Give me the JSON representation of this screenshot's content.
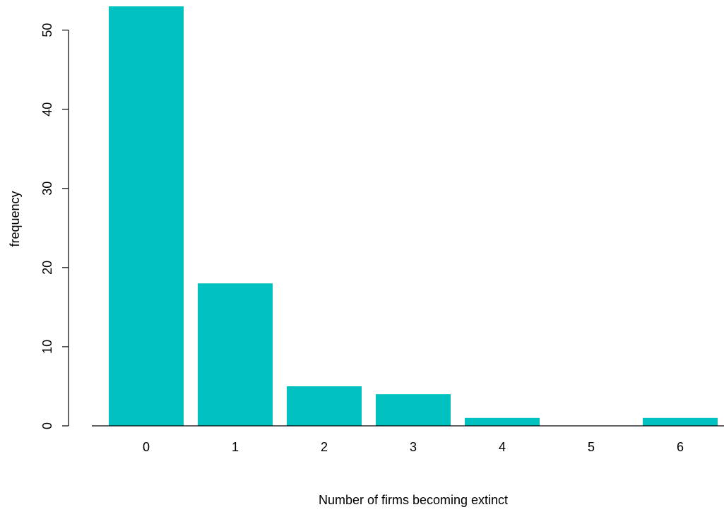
{
  "chart_data": {
    "type": "bar",
    "title": "",
    "xlabel": "Number of firms becoming extinct",
    "ylabel": "frequency",
    "categories": [
      "0",
      "1",
      "2",
      "3",
      "4",
      "5",
      "6"
    ],
    "values": [
      53,
      18,
      5,
      4,
      1,
      0,
      1
    ],
    "ylim": [
      0,
      53
    ],
    "yticks": [
      0,
      10,
      20,
      30,
      40,
      50
    ],
    "grid": false,
    "bar_color": "#00C0C0",
    "axis_color": "#000000"
  }
}
